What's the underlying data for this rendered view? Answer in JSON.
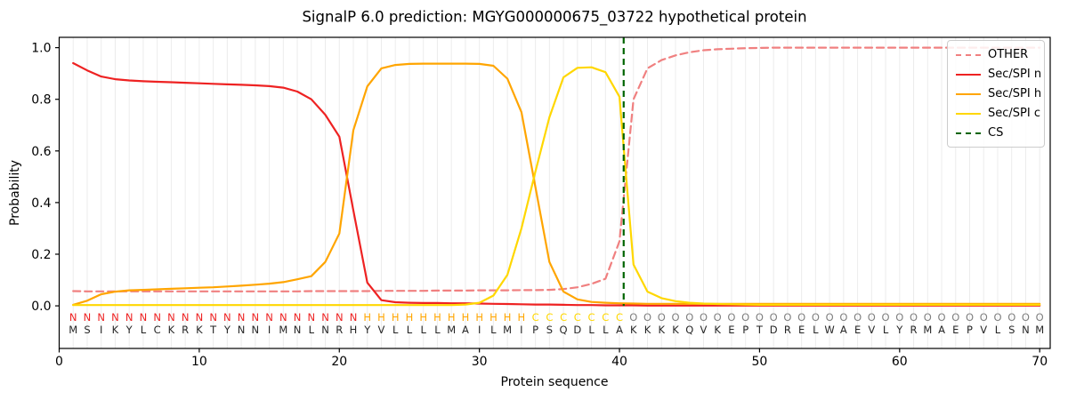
{
  "figure": {
    "title": "SignalP 6.0 prediction: MGYG000000675_03722 hypothetical protein",
    "xlabel": "Protein sequence",
    "ylabel": "Probability"
  },
  "legend": {
    "position": "upper right",
    "items": [
      {
        "label": "OTHER",
        "color": "#f08080",
        "dash": true
      },
      {
        "label": "Sec/SPI n",
        "color": "#ee2222",
        "dash": false
      },
      {
        "label": "Sec/SPI h",
        "color": "#ffa500",
        "dash": false
      },
      {
        "label": "Sec/SPI c",
        "color": "#ffd700",
        "dash": false
      },
      {
        "label": "CS",
        "color": "#006400",
        "dash": true
      }
    ]
  },
  "colors": {
    "other": "#f08080",
    "n_region": "#ee2222",
    "h_region": "#ffa500",
    "c_region": "#ffd700",
    "cs_line": "#006400",
    "o_letter": "#7f7f7f",
    "seq_letter": "#262626",
    "grid": "#ececec",
    "spine": "#000000"
  },
  "chart_data": {
    "type": "line",
    "title": "SignalP 6.0 prediction: MGYG000000675_03722 hypothetical protein",
    "xlabel": "Protein sequence",
    "ylabel": "Probability",
    "xlim": [
      0,
      70.75
    ],
    "ylim": [
      -0.165,
      1.04
    ],
    "x_ticks": [
      0,
      10,
      20,
      30,
      40,
      50,
      60,
      70
    ],
    "y_ticks": [
      0.0,
      0.2,
      0.4,
      0.6,
      0.8,
      1.0
    ],
    "y_tick_labels": [
      "0.0",
      "0.2",
      "0.4",
      "0.6",
      "0.8",
      "1.0"
    ],
    "grid": "vertical line at every residue position, no horizontal grid",
    "legend_position": "upper right",
    "cs_position": 40.3,
    "sequence": "MSIKYLCKRKTYNNIMNLNRHYVLLLLMAILMIPSQDLLAKKKKQVKEPTDRELWAEVLYRMAEPVLSNM",
    "region_labels": "NNNNNNNNNNNNNNNNNNNNNHHHHHHHHHHHHCCCCCCCOOOOOOOOOOOOOOOOOOOOOOOOOOOOOO",
    "x": [
      1,
      2,
      3,
      4,
      5,
      6,
      7,
      8,
      9,
      10,
      11,
      12,
      13,
      14,
      15,
      16,
      17,
      18,
      19,
      20,
      21,
      22,
      23,
      24,
      25,
      26,
      27,
      28,
      29,
      30,
      31,
      32,
      33,
      34,
      35,
      36,
      37,
      38,
      39,
      40,
      41,
      42,
      43,
      44,
      45,
      46,
      47,
      48,
      49,
      50,
      51,
      52,
      53,
      54,
      55,
      56,
      57,
      58,
      59,
      60,
      61,
      62,
      63,
      64,
      65,
      66,
      67,
      68,
      69,
      70
    ],
    "series": [
      {
        "name": "OTHER",
        "color": "#f08080",
        "dash": true,
        "values": [
          0.057,
          0.056,
          0.056,
          0.056,
          0.056,
          0.056,
          0.056,
          0.056,
          0.056,
          0.056,
          0.056,
          0.056,
          0.056,
          0.056,
          0.056,
          0.056,
          0.056,
          0.057,
          0.057,
          0.057,
          0.057,
          0.057,
          0.058,
          0.058,
          0.058,
          0.058,
          0.059,
          0.059,
          0.059,
          0.06,
          0.06,
          0.06,
          0.061,
          0.061,
          0.062,
          0.065,
          0.072,
          0.085,
          0.105,
          0.25,
          0.8,
          0.92,
          0.952,
          0.97,
          0.982,
          0.99,
          0.994,
          0.996,
          0.998,
          0.999,
          1.0,
          1.0,
          1.0,
          1.0,
          1.0,
          1.0,
          1.0,
          1.0,
          1.0,
          1.0,
          1.0,
          1.0,
          1.0,
          1.0,
          1.0,
          1.0,
          1.0,
          1.0,
          1.0,
          1.0
        ]
      },
      {
        "name": "Sec/SPI n",
        "color": "#ee2222",
        "dash": false,
        "values": [
          0.94,
          0.912,
          0.888,
          0.878,
          0.873,
          0.87,
          0.868,
          0.866,
          0.864,
          0.862,
          0.86,
          0.858,
          0.856,
          0.854,
          0.851,
          0.845,
          0.83,
          0.8,
          0.74,
          0.655,
          0.37,
          0.09,
          0.022,
          0.014,
          0.012,
          0.011,
          0.011,
          0.01,
          0.01,
          0.009,
          0.008,
          0.007,
          0.006,
          0.005,
          0.005,
          0.004,
          0.003,
          0.003,
          0.002,
          0.002,
          0.002,
          0.001,
          0.001,
          0.001,
          0.001,
          0.001,
          0.001,
          0.001,
          0.001,
          0.001,
          0.001,
          0.001,
          0.001,
          0.001,
          0.001,
          0.001,
          0.001,
          0.001,
          0.001,
          0.001,
          0.001,
          0.001,
          0.001,
          0.001,
          0.001,
          0.001,
          0.001,
          0.001,
          0.001,
          0.001
        ]
      },
      {
        "name": "Sec/SPI h",
        "color": "#ffa500",
        "dash": false,
        "values": [
          0.004,
          0.02,
          0.045,
          0.055,
          0.06,
          0.062,
          0.064,
          0.066,
          0.068,
          0.07,
          0.072,
          0.075,
          0.078,
          0.082,
          0.086,
          0.092,
          0.103,
          0.115,
          0.17,
          0.28,
          0.68,
          0.85,
          0.92,
          0.933,
          0.937,
          0.938,
          0.938,
          0.938,
          0.938,
          0.937,
          0.93,
          0.88,
          0.75,
          0.46,
          0.17,
          0.055,
          0.025,
          0.015,
          0.012,
          0.01,
          0.009,
          0.008,
          0.008,
          0.008,
          0.008,
          0.008,
          0.008,
          0.008,
          0.008,
          0.008,
          0.008,
          0.008,
          0.008,
          0.008,
          0.008,
          0.008,
          0.008,
          0.008,
          0.008,
          0.008,
          0.008,
          0.008,
          0.008,
          0.008,
          0.008,
          0.008,
          0.008,
          0.008,
          0.008,
          0.008
        ]
      },
      {
        "name": "Sec/SPI c",
        "color": "#ffd700",
        "dash": false,
        "values": [
          0.003,
          0.003,
          0.003,
          0.003,
          0.003,
          0.003,
          0.003,
          0.003,
          0.003,
          0.003,
          0.003,
          0.003,
          0.003,
          0.003,
          0.003,
          0.003,
          0.003,
          0.003,
          0.003,
          0.003,
          0.003,
          0.003,
          0.003,
          0.003,
          0.003,
          0.003,
          0.003,
          0.003,
          0.005,
          0.012,
          0.04,
          0.12,
          0.3,
          0.52,
          0.73,
          0.885,
          0.922,
          0.924,
          0.905,
          0.81,
          0.16,
          0.055,
          0.03,
          0.018,
          0.012,
          0.009,
          0.007,
          0.006,
          0.005,
          0.004,
          0.004,
          0.004,
          0.004,
          0.004,
          0.004,
          0.004,
          0.004,
          0.004,
          0.004,
          0.004,
          0.004,
          0.004,
          0.004,
          0.004,
          0.004,
          0.004,
          0.004,
          0.004,
          0.004,
          0.004
        ]
      }
    ]
  }
}
